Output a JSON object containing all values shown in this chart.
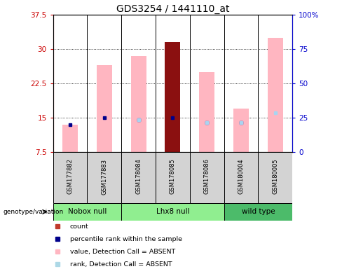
{
  "title": "GDS3254 / 1441110_at",
  "samples": [
    "GSM177882",
    "GSM177883",
    "GSM178084",
    "GSM178085",
    "GSM178086",
    "GSM180004",
    "GSM180005"
  ],
  "ylim_left": [
    7.5,
    37.5
  ],
  "ylim_right": [
    0,
    100
  ],
  "yticks_left": [
    7.5,
    15.0,
    22.5,
    30.0,
    37.5
  ],
  "yticks_right": [
    0,
    25,
    50,
    75,
    100
  ],
  "ytick_labels_left": [
    "7.5",
    "15",
    "22.5",
    "30",
    "37.5"
  ],
  "ytick_labels_right": [
    "0",
    "25",
    "50",
    "75",
    "100%"
  ],
  "pink_bar_heights": [
    13.5,
    26.5,
    28.5,
    31.5,
    25.0,
    17.0,
    32.5
  ],
  "pink_bar_is_red": [
    false,
    false,
    false,
    true,
    false,
    false,
    false
  ],
  "blue_mark_heights": [
    13.5,
    15.0,
    14.5,
    15.0,
    14.0,
    14.0,
    null
  ],
  "light_blue_mark_heights": [
    null,
    null,
    14.5,
    null,
    14.0,
    14.0,
    16.0
  ],
  "groups": [
    {
      "label": "Nobox null",
      "start": 0,
      "end": 2,
      "color": "#90EE90"
    },
    {
      "label": "Lhx8 null",
      "start": 2,
      "end": 5,
      "color": "#90EE90"
    },
    {
      "label": "wild type",
      "start": 5,
      "end": 7,
      "color": "#4CBB6A"
    }
  ],
  "left_axis_color": "#CC0000",
  "right_axis_color": "#0000CC",
  "bar_width": 0.45,
  "bar_bottom": 7.5,
  "legend_colors": [
    "#C0392B",
    "#00008B",
    "#FFB6C1",
    "#ADD8E6"
  ],
  "legend_labels": [
    "count",
    "percentile rank within the sample",
    "value, Detection Call = ABSENT",
    "rank, Detection Call = ABSENT"
  ]
}
